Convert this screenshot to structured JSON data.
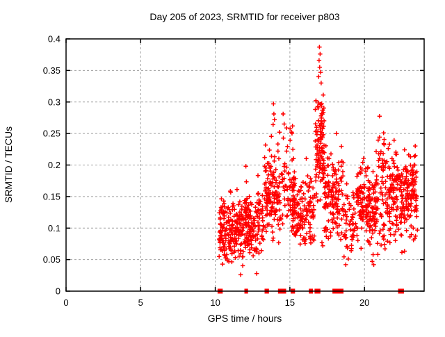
{
  "chart_data": {
    "type": "scatter",
    "title": "Day 205 of 2023, SRMTID for receiver p803",
    "xlabel": "GPS time / hours",
    "ylabel": "SRMTID / TECUs",
    "xlim": [
      0,
      24
    ],
    "ylim": [
      0,
      0.4
    ],
    "xtick_values": [
      0,
      5,
      10,
      15,
      20
    ],
    "xtick_labels": [
      "0",
      "5",
      "10",
      "15",
      "20"
    ],
    "ytick_values": [
      0,
      0.05,
      0.1,
      0.15,
      0.2,
      0.25,
      0.3,
      0.35,
      0.4
    ],
    "ytick_labels": [
      "0",
      "0.05",
      "0.1",
      "0.15",
      "0.2",
      "0.25",
      "0.3",
      "0.35",
      "0.4"
    ],
    "grid": "dashed",
    "legend": "none",
    "marker": "plus",
    "marker_color": "#ff0000",
    "grid_color": "#a0a0a0",
    "border_color": "#000000",
    "seed": 205,
    "data_start_hour": 10.2,
    "data_end_hour": 23.55,
    "clusters": [
      {
        "t0": 10.25,
        "t1": 11.9,
        "n": 200,
        "mean": 0.095,
        "sd": 0.027,
        "vmin": 0.04,
        "vmax": 0.175
      },
      {
        "t0": 11.95,
        "t1": 12.45,
        "n": 80,
        "mean": 0.1,
        "sd": 0.028,
        "vmin": 0.05,
        "vmax": 0.185
      },
      {
        "t0": 12.5,
        "t1": 13.25,
        "n": 65,
        "mean": 0.105,
        "sd": 0.03,
        "vmin": 0.055,
        "vmax": 0.185
      },
      {
        "t0": 13.3,
        "t1": 14.35,
        "n": 125,
        "mean": 0.15,
        "sd": 0.04,
        "vmin": 0.075,
        "vmax": 0.26
      },
      {
        "t0": 14.4,
        "t1": 15.35,
        "n": 60,
        "mean": 0.17,
        "sd": 0.045,
        "vmin": 0.095,
        "vmax": 0.27
      },
      {
        "t0": 15.15,
        "t1": 16.65,
        "n": 150,
        "mean": 0.125,
        "sd": 0.03,
        "vmin": 0.065,
        "vmax": 0.215
      },
      {
        "t0": 16.7,
        "t1": 17.3,
        "n": 105,
        "mean": 0.225,
        "sd": 0.045,
        "vmin": 0.14,
        "vmax": 0.345
      },
      {
        "t0": 17.3,
        "t1": 18.6,
        "n": 140,
        "mean": 0.155,
        "sd": 0.035,
        "vmin": 0.075,
        "vmax": 0.25
      },
      {
        "t0": 18.6,
        "t1": 19.45,
        "n": 55,
        "mean": 0.105,
        "sd": 0.035,
        "vmin": 0.04,
        "vmax": 0.18
      },
      {
        "t0": 19.45,
        "t1": 20.9,
        "n": 170,
        "mean": 0.14,
        "sd": 0.035,
        "vmin": 0.05,
        "vmax": 0.23
      },
      {
        "t0": 20.9,
        "t1": 21.45,
        "n": 55,
        "mean": 0.17,
        "sd": 0.05,
        "vmin": 0.06,
        "vmax": 0.281
      },
      {
        "t0": 21.5,
        "t1": 22.7,
        "n": 140,
        "mean": 0.15,
        "sd": 0.04,
        "vmin": 0.055,
        "vmax": 0.24
      },
      {
        "t0": 22.7,
        "t1": 23.55,
        "n": 115,
        "mean": 0.155,
        "sd": 0.035,
        "vmin": 0.08,
        "vmax": 0.235
      }
    ],
    "outliers": [
      [
        16.98,
        0.387
      ],
      [
        17.03,
        0.376
      ],
      [
        16.96,
        0.366
      ],
      [
        17.0,
        0.355
      ],
      [
        17.06,
        0.347
      ],
      [
        16.93,
        0.34
      ],
      [
        17.1,
        0.33
      ],
      [
        13.9,
        0.297
      ],
      [
        13.93,
        0.281
      ],
      [
        13.97,
        0.272
      ],
      [
        13.88,
        0.264
      ],
      [
        14.55,
        0.281
      ],
      [
        14.62,
        0.265
      ],
      [
        15.18,
        0.262
      ],
      [
        15.12,
        0.252
      ],
      [
        12.05,
        0.198
      ],
      [
        13.32,
        0.198
      ],
      [
        11.7,
        0.026
      ],
      [
        12.78,
        0.028
      ],
      [
        17.15,
        0.077
      ],
      [
        17.21,
        0.072
      ],
      [
        18.75,
        0.042
      ],
      [
        20.52,
        0.047
      ],
      [
        20.62,
        0.042
      ]
    ],
    "axis_gap_marks": [
      [
        10.2,
        10.45
      ],
      [
        12.0,
        12.15
      ],
      [
        13.35,
        13.55
      ],
      [
        14.25,
        14.7
      ],
      [
        15.1,
        15.3
      ],
      [
        16.32,
        16.38
      ],
      [
        16.44,
        16.5
      ],
      [
        16.7,
        17.0
      ],
      [
        17.9,
        18.55
      ],
      [
        22.3,
        22.6
      ]
    ]
  }
}
